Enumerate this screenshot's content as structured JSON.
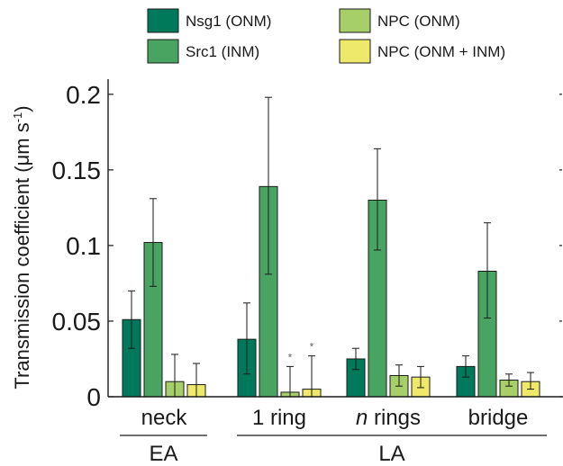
{
  "chart_data": {
    "type": "bar",
    "ylabel": "Transmission coefficient (μm s⁻¹)",
    "ylabel_parts": {
      "main": "Transmission coefficient (μm s",
      "sup": "-1",
      "close": ")"
    },
    "ylim": [
      0,
      0.21
    ],
    "yticks": [
      0,
      0.05,
      0.1,
      0.15,
      0.2
    ],
    "ytick_labels": [
      "0",
      "0.05",
      "0.1",
      "0.15",
      "0.2"
    ],
    "categories": [
      "neck",
      "1 ring",
      "n rings",
      "bridge"
    ],
    "category_labels": [
      {
        "italic": "",
        "rest": "neck"
      },
      {
        "italic": "",
        "rest": "1 ring"
      },
      {
        "italic": "n",
        "rest": " rings"
      },
      {
        "italic": "",
        "rest": "bridge"
      }
    ],
    "groups": [
      {
        "label": "EA",
        "categories": [
          0
        ]
      },
      {
        "label": "LA",
        "categories": [
          1,
          2,
          3
        ]
      }
    ],
    "legend_position": "top",
    "series": [
      {
        "name": "Nsg1 (ONM)",
        "color": "#00795a",
        "values": [
          0.051,
          0.038,
          0.025,
          0.02
        ],
        "err_low": [
          0.032,
          0.015,
          0.018,
          0.013
        ],
        "err_high": [
          0.07,
          0.062,
          0.032,
          0.027
        ]
      },
      {
        "name": "Src1 (INM)",
        "color": "#4aa461",
        "values": [
          0.102,
          0.139,
          0.13,
          0.083
        ],
        "err_low": [
          0.073,
          0.081,
          0.097,
          0.052
        ],
        "err_high": [
          0.131,
          0.198,
          0.164,
          0.115
        ]
      },
      {
        "name": "NPC (ONM)",
        "color": "#a6cf6a",
        "values": [
          0.01,
          0.003,
          0.014,
          0.011
        ],
        "err_low": [
          0.0,
          0.0,
          0.007,
          0.007
        ],
        "err_high": [
          0.028,
          0.02,
          0.021,
          0.015
        ]
      },
      {
        "name": "NPC (ONM + INM)",
        "color": "#eee96a",
        "values": [
          0.008,
          0.005,
          0.013,
          0.01
        ],
        "err_low": [
          0.0,
          0.0,
          0.006,
          0.005
        ],
        "err_high": [
          0.022,
          0.027,
          0.02,
          0.016
        ]
      }
    ],
    "annotations": [
      {
        "text": "*",
        "category": 1,
        "series": 2
      },
      {
        "text": "*",
        "category": 1,
        "series": 3
      }
    ]
  }
}
